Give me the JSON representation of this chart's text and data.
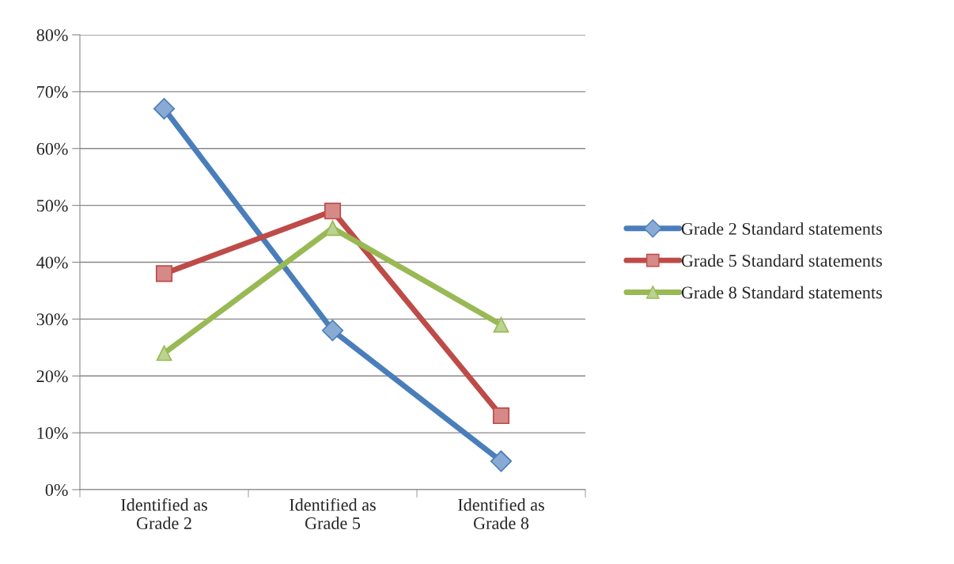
{
  "chart_data": {
    "type": "line",
    "categories": [
      "Identified as\nGrade 2",
      "Identified as\nGrade 5",
      "Identified as\nGrade 8"
    ],
    "series": [
      {
        "name": "Grade 2 Standard statements",
        "color": "#4a7ebb",
        "marker": "diamond",
        "values": [
          67,
          28,
          5
        ]
      },
      {
        "name": "Grade 5 Standard statements",
        "color": "#be4b48",
        "marker": "square",
        "values": [
          38,
          49,
          13
        ]
      },
      {
        "name": "Grade 8 Standard statements",
        "color": "#98b954",
        "marker": "triangle",
        "values": [
          24,
          46,
          29
        ]
      }
    ],
    "ylim": [
      0,
      80
    ],
    "yticks": [
      {
        "value": 0,
        "label": "0%"
      },
      {
        "value": 10,
        "label": "10%"
      },
      {
        "value": 20,
        "label": "20%"
      },
      {
        "value": 30,
        "label": "30%"
      },
      {
        "value": 40,
        "label": "40%"
      },
      {
        "value": 50,
        "label": "50%"
      },
      {
        "value": 60,
        "label": "60%"
      },
      {
        "value": 70,
        "label": "70%"
      },
      {
        "value": 80,
        "label": "80%"
      }
    ],
    "grid": "y",
    "legend": "right",
    "line_style": "solid"
  }
}
